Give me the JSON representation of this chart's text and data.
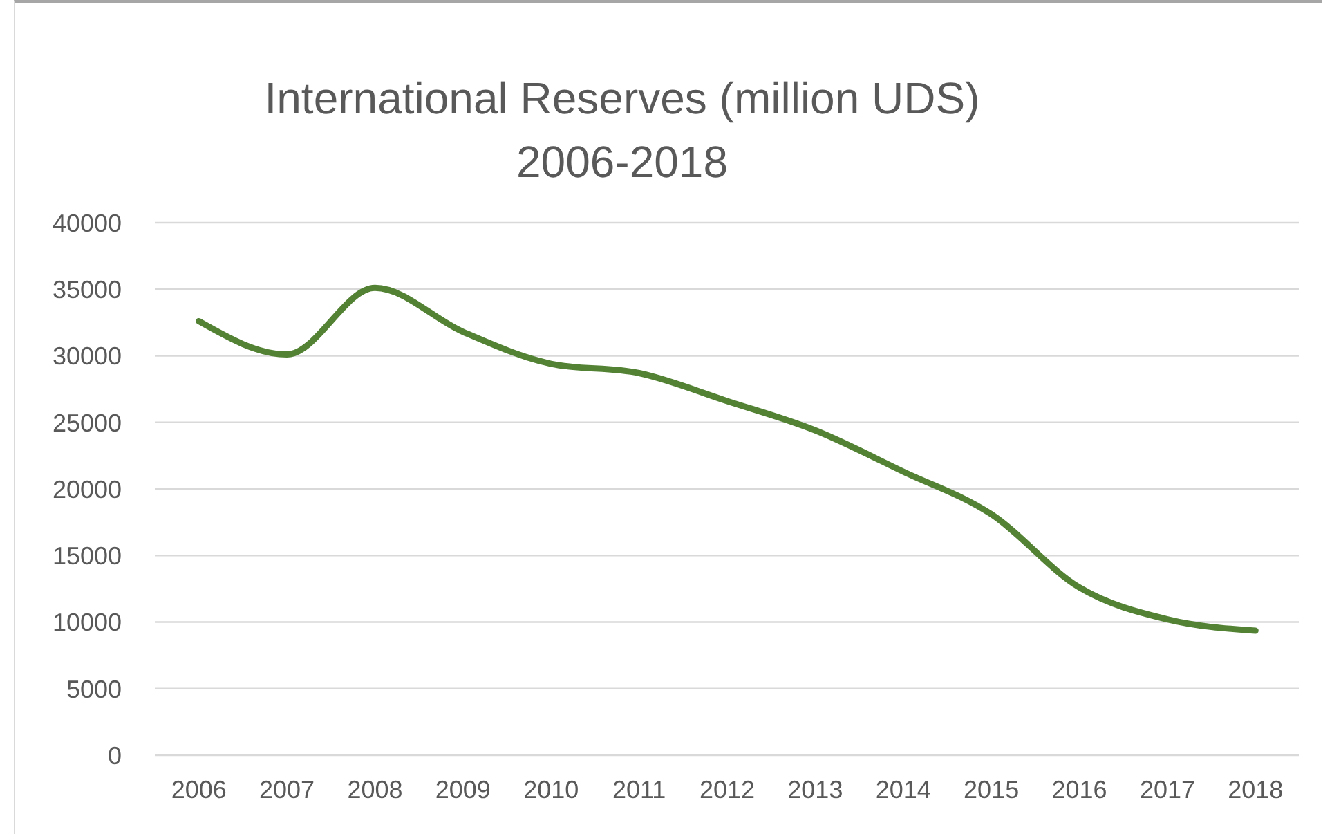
{
  "chart_data": {
    "type": "line",
    "title": "International Reserves (million UDS)\n2006-2018",
    "categories": [
      "2006",
      "2007",
      "2008",
      "2009",
      "2010",
      "2011",
      "2012",
      "2013",
      "2014",
      "2015",
      "2016",
      "2017",
      "2018"
    ],
    "series": [
      {
        "color": "#548235",
        "values": [
          32600,
          30100,
          35100,
          31800,
          29400,
          28700,
          26600,
          24400,
          21300,
          18100,
          12600,
          10200,
          9350
        ]
      }
    ],
    "ylim": [
      0,
      40000
    ],
    "yticks": [
      0,
      5000,
      10000,
      15000,
      20000,
      25000,
      30000,
      35000,
      40000
    ],
    "grid": "y",
    "legend": false,
    "marker": "none",
    "line_style": "solid"
  }
}
